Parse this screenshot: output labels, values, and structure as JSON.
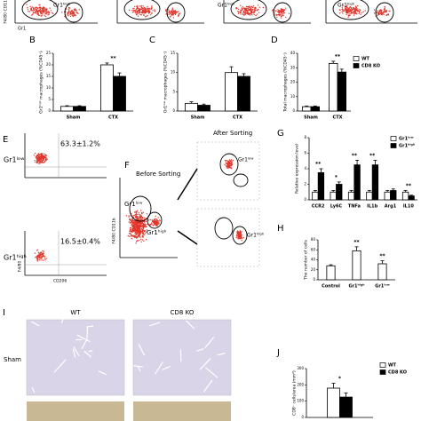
{
  "top_strip": {
    "y_label": "F4/80 CD11b",
    "x_label": "Gr1",
    "gate_labels": [
      "Gr1ʰⁱᵍʰ",
      "Gr1ʰⁱᵍʰ",
      "Gr1ʰⁱᵍʰ"
    ]
  },
  "panel_labels": [
    "B",
    "C",
    "D",
    "E",
    "F",
    "G",
    "H",
    "I",
    "J"
  ],
  "panel_e": {
    "populations": [
      {
        "label": "Gr1ˡᵒʷ",
        "percent": "63.3±1.2%"
      },
      {
        "label": "Gr1ʰⁱᵍʰ",
        "percent": "16.5±0.4%"
      }
    ],
    "y_label": "F4/80",
    "x_label": "CD206"
  },
  "panel_f": {
    "before": "Before Sorting",
    "after": "After Sorting",
    "y_label": "F4/80 CD11b",
    "gates": [
      "Gr1ˡᵒʷ",
      "Gr1ʰⁱᵍʰ"
    ],
    "after_gates": [
      "Gr1ˡᵒʷ",
      "Gr1ʰⁱᵍʰ"
    ]
  },
  "panel_i": {
    "columns": [
      "WT",
      "CD8 KO"
    ],
    "rows": [
      "Sham"
    ]
  },
  "chart_data": [
    {
      "type": "bar",
      "y_label": "Gr1ʰⁱᵍʰ macrophages (%CD45⁺)",
      "categories": [
        "Sham",
        "CTX"
      ],
      "series": [
        {
          "name": "WT",
          "color": "#ffffff",
          "values": [
            2,
            20
          ],
          "errors": [
            0.3,
            0.8
          ]
        },
        {
          "name": "CD8 KO",
          "color": "#000000",
          "values": [
            2,
            15
          ],
          "errors": [
            0.3,
            1.5
          ]
        }
      ],
      "ylim": [
        0,
        25
      ],
      "yticks": [
        0,
        5,
        10,
        15,
        20,
        25
      ],
      "significance": [
        null,
        "**"
      ]
    },
    {
      "type": "bar",
      "y_label": "Gr1ˡᵒʷ macrophages (%CD45⁺)",
      "categories": [
        "Sham",
        "CTX"
      ],
      "series": [
        {
          "name": "WT",
          "color": "#ffffff",
          "values": [
            2,
            10
          ],
          "errors": [
            0.4,
            1.5
          ]
        },
        {
          "name": "CD8 KO",
          "color": "#000000",
          "values": [
            1.5,
            9
          ],
          "errors": [
            0.3,
            0.7
          ]
        }
      ],
      "ylim": [
        0,
        15
      ],
      "yticks": [
        0,
        5,
        10,
        15
      ]
    },
    {
      "type": "bar",
      "y_label": "Total macrophages (%CD45⁺)",
      "categories": [
        "Sham",
        "CTX"
      ],
      "series": [
        {
          "name": "WT",
          "color": "#ffffff",
          "values": [
            3,
            33
          ],
          "errors": [
            0.5,
            1.5
          ]
        },
        {
          "name": "CD8 KO",
          "color": "#000000",
          "values": [
            3,
            27
          ],
          "errors": [
            0.5,
            2
          ]
        }
      ],
      "ylim": [
        0,
        40
      ],
      "yticks": [
        0,
        10,
        20,
        30,
        40
      ],
      "significance": [
        null,
        "**"
      ],
      "legend": true
    },
    {
      "type": "bar",
      "y_label": "Relative expression level",
      "categories": [
        "CCR2",
        "Ly6C",
        "TNFa",
        "IL1b",
        "Arg1",
        "IL10"
      ],
      "series": [
        {
          "name": "Gr1ˡᵒʷ",
          "color": "#ffffff",
          "values": [
            1,
            1,
            1,
            1,
            1,
            1
          ],
          "errors": [
            0.2,
            0.2,
            0.2,
            0.2,
            0.2,
            0.2
          ]
        },
        {
          "name": "Gr1ʰⁱᵍʰ",
          "color": "#000000",
          "values": [
            3.5,
            2,
            4.5,
            4.5,
            1.2,
            0.5
          ],
          "errors": [
            0.5,
            0.3,
            0.6,
            0.6,
            0.2,
            0.1
          ]
        }
      ],
      "ylim": [
        0,
        8
      ],
      "yticks": [
        0,
        2,
        4,
        6,
        8
      ],
      "significance": [
        "**",
        "*",
        "**",
        "**",
        null,
        "**"
      ],
      "legend": true
    },
    {
      "type": "bar",
      "y_label": "The number of cells",
      "categories": [
        "Control",
        "Gr1ʰⁱᵍʰ",
        "Gr1ˡᵒʷ"
      ],
      "series": [
        {
          "name": "cells",
          "color": "#ffffff",
          "values": [
            28,
            58,
            32
          ],
          "errors": [
            2,
            8,
            6
          ]
        }
      ],
      "ylim": [
        0,
        80
      ],
      "yticks": [
        0,
        20,
        40,
        60,
        80
      ],
      "significance": [
        null,
        "**",
        "**"
      ]
    },
    {
      "type": "bar",
      "y_label": "CD8⁺ cells/area (mm²)",
      "categories": [
        null
      ],
      "series": [
        {
          "name": "WT",
          "color": "#ffffff",
          "values": [
            180
          ],
          "errors": [
            30
          ]
        },
        {
          "name": "CD8 KO",
          "color": "#000000",
          "values": [
            125
          ],
          "errors": [
            25
          ]
        }
      ],
      "ylim": [
        0,
        300
      ],
      "yticks": [
        0,
        100,
        200,
        300
      ],
      "significance": [
        "*"
      ],
      "legend": true
    }
  ]
}
